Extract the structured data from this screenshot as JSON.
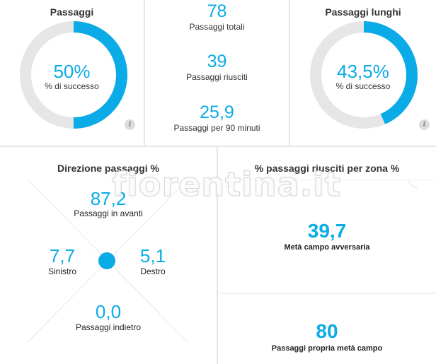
{
  "passaggi": {
    "title": "Passaggi",
    "percent_text": "50%",
    "percent_value": 50,
    "label": "% di successo",
    "info_glyph": "i"
  },
  "stats": {
    "totali": {
      "value": "78",
      "label": "Passaggi totali"
    },
    "riusciti": {
      "value": "39",
      "label": "Passaggi riusciti"
    },
    "per90": {
      "value": "25,9",
      "label": "Passaggi per 90 minuti"
    }
  },
  "lunghi": {
    "title": "Passaggi lunghi",
    "percent_text": "43,5%",
    "percent_value": 43.5,
    "label": "% di successo",
    "info_glyph": "i"
  },
  "direzione": {
    "title": "Direzione passaggi %",
    "avanti": {
      "value": "87,2",
      "label": "Passaggi in avanti"
    },
    "sinistro": {
      "value": "7,7",
      "label": "Sinistro"
    },
    "destro": {
      "value": "5,1",
      "label": "Destro"
    },
    "indietro": {
      "value": "0,0",
      "label": "Passaggi indietro"
    }
  },
  "zona": {
    "title": "% passaggi riusciti per zona %",
    "avversaria": {
      "value": "39,7",
      "label": "Metà campo avversaria"
    },
    "propria": {
      "value": "80",
      "label": "Passaggi propria metà campo"
    }
  },
  "watermark": "fiorentina.it",
  "colors": {
    "accent": "#0aabe6",
    "track": "#e6e6e6",
    "divider": "#e6e6e6"
  }
}
